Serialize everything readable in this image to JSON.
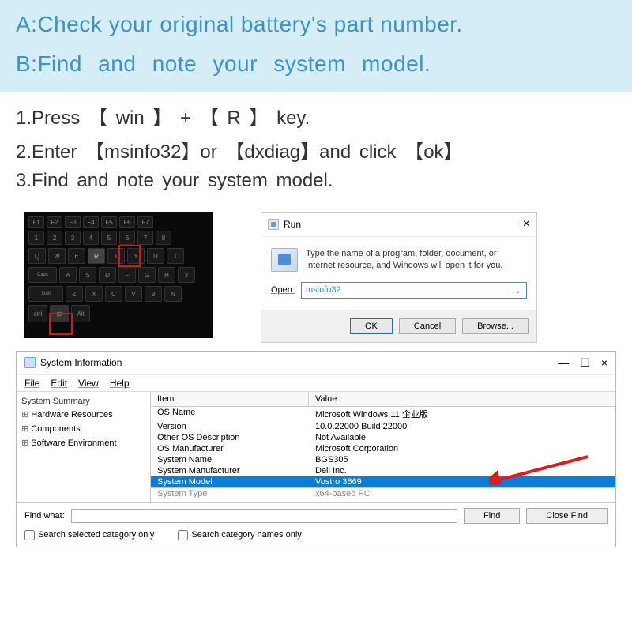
{
  "header": {
    "lineA": "A:Check your original battery's part number.",
    "lineB": "B:Find and note your system model.",
    "text_color": "#3a93cc",
    "bg_color": "#d5edf7"
  },
  "steps": {
    "s1": "1.Press 【 win 】 + 【 R 】 key.",
    "s2": "2.Enter 【msinfo32】or 【dxdiag】and click  【ok】",
    "s3": "3.Find and note your system model."
  },
  "keyboard": {
    "fn_keys": [
      "F1",
      "F2",
      "F3",
      "F4",
      "F5",
      "F6",
      "F7"
    ],
    "num_keys": [
      "1",
      "2",
      "3",
      "4",
      "5",
      "6",
      "7",
      "8"
    ],
    "qw_keys": [
      "Q",
      "W",
      "E",
      "R",
      "T",
      "Y",
      "U",
      "I"
    ],
    "caps_keys": [
      "A",
      "S",
      "D",
      "F",
      "G",
      "H",
      "J"
    ],
    "shift_keys": [
      "Z",
      "X",
      "C",
      "V",
      "B",
      "N"
    ],
    "ctrl_keys": [
      "ctrl",
      "⊞",
      "Alt"
    ],
    "highlight_color": "#d01818"
  },
  "run": {
    "title": "Run",
    "close": "×",
    "description": "Type the name of a program, folder, document, or Internet resource, and Windows will open it for you.",
    "open_label": "Open:",
    "input_value": "msinfo32",
    "dropdown": "⌄",
    "ok_btn": "OK",
    "cancel_btn": "Cancel",
    "browse_btn": "Browse..."
  },
  "sysinfo": {
    "title": "System Information",
    "minimize": "—",
    "maximize": "☐",
    "close": "×",
    "menu": {
      "file": "File",
      "edit": "Edit",
      "view": "View",
      "help": "Help"
    },
    "tree": {
      "summary": "System Summary",
      "hw": "Hardware Resources",
      "comp": "Components",
      "sw": "Software Environment"
    },
    "columns": {
      "item": "Item",
      "value": "Value"
    },
    "rows": [
      {
        "item": "OS Name",
        "value": "Microsoft Windows 11 企业版"
      },
      {
        "item": "Version",
        "value": "10.0.22000 Build 22000"
      },
      {
        "item": "Other OS Description",
        "value": "Not Available"
      },
      {
        "item": "OS Manufacturer",
        "value": "Microsoft Corporation"
      },
      {
        "item": "System Name",
        "value": "BGS305"
      },
      {
        "item": "System Manufacturer",
        "value": "Dell Inc."
      }
    ],
    "highlighted_row": {
      "item": "System Model",
      "value": "Vostro 3669"
    },
    "cut_row": {
      "item": "System Type",
      "value": "x64-based PC"
    },
    "highlight_bg": "#0a7dd8",
    "arrow_color": "#e41a1a",
    "find": {
      "label": "Find what:",
      "find_btn": "Find",
      "close_btn": "Close Find",
      "cb1": "Search selected category only",
      "cb2": "Search category names only"
    }
  }
}
